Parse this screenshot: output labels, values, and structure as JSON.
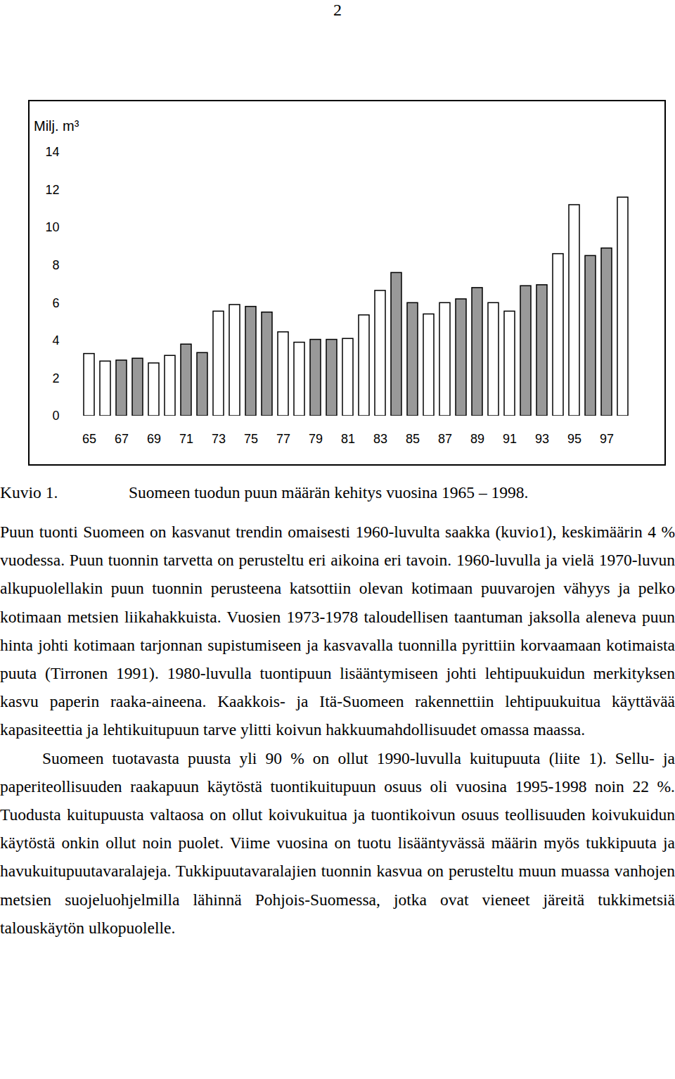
{
  "page_number": "2",
  "chart_data": {
    "type": "bar",
    "y_label": "Milj. m³",
    "categories": [
      "65",
      null,
      "67",
      null,
      "69",
      null,
      "71",
      null,
      "73",
      null,
      "75",
      null,
      "77",
      null,
      "79",
      null,
      "81",
      null,
      "83",
      null,
      "85",
      null,
      "87",
      null,
      "89",
      null,
      "91",
      null,
      "93",
      null,
      "95",
      null,
      "97",
      null
    ],
    "values": [
      3.3,
      2.9,
      2.95,
      3.05,
      2.8,
      3.2,
      3.8,
      3.35,
      5.55,
      5.9,
      5.8,
      5.5,
      4.45,
      3.9,
      4.05,
      4.05,
      4.1,
      5.35,
      6.65,
      7.6,
      6.0,
      5.4,
      6.0,
      6.2,
      6.8,
      6.0,
      5.55,
      6.9,
      6.95,
      8.6,
      11.2,
      8.5,
      8.9,
      11.6
    ],
    "colors": [
      "#ffffff",
      "#ffffff",
      "#999999",
      "#999999",
      "#ffffff",
      "#ffffff",
      "#999999",
      "#999999",
      "#ffffff",
      "#ffffff",
      "#999999",
      "#999999",
      "#ffffff",
      "#ffffff",
      "#999999",
      "#999999",
      "#ffffff",
      "#ffffff",
      "#ffffff",
      "#999999",
      "#999999",
      "#ffffff",
      "#ffffff",
      "#999999",
      "#999999",
      "#ffffff",
      "#ffffff",
      "#999999",
      "#999999",
      "#ffffff",
      "#ffffff",
      "#999999",
      "#999999",
      "#ffffff"
    ],
    "ylim": [
      0,
      14
    ],
    "yticks": [
      0,
      2,
      4,
      6,
      8,
      10,
      12,
      14
    ],
    "grid": false
  },
  "caption": {
    "label": "Kuvio 1.",
    "text": "Suomeen tuodun puun määrän kehitys vuosina 1965 – 1998."
  },
  "paragraphs": [
    "Puun tuonti Suomeen on kasvanut trendin omaisesti 1960-luvulta saakka (kuvio1), keskimäärin 4 % vuodessa. Puun tuonnin tarvetta on perusteltu eri aikoina eri tavoin. 1960-luvulla ja vielä 1970-luvun alkupuolellakin puun tuonnin perusteena katsottiin olevan kotimaan puuvarojen vähyys ja pelko kotimaan metsien liikahakkuista. Vuosien 1973-1978 taloudellisen taantuman jaksolla aleneva puun hinta johti kotimaan tarjonnan supistumiseen ja kasvavalla tuonnilla pyrittiin korvaamaan kotimaista puuta (Tirronen 1991). 1980-luvulla tuontipuun lisääntymiseen johti lehtipuukuidun merkityksen kasvu paperin raaka-aineena. Kaakkois- ja Itä-Suomeen rakennettiin lehtipuukuitua käyttävää kapasiteettia ja lehtikuitupuun tarve ylitti koivun hakkuumahdollisuudet omassa maassa.",
    "Suomeen tuotavasta puusta yli 90 % on ollut 1990-luvulla kuitupuuta (liite 1). Sellu- ja paperiteollisuuden raakapuun käytöstä tuontikuitupuun osuus oli vuosina 1995-1998 noin 22 %. Tuodusta kuitupuusta valtaosa on ollut koivukuitua ja tuontikoivun osuus teollisuuden koivukuidun käytöstä onkin ollut noin puolet. Viime vuosina on tuotu lisääntyvässä määrin myös tukkipuuta ja havukuitupuutavaralajeja. Tukkipuutavaralajien tuonnin kasvua on perusteltu muun muassa vanhojen metsien suojeluohjelmilla lähinnä Pohjois-Suomessa, jotka ovat vieneet järeitä tukkimetsiä talouskäytön ulkopuolelle."
  ]
}
